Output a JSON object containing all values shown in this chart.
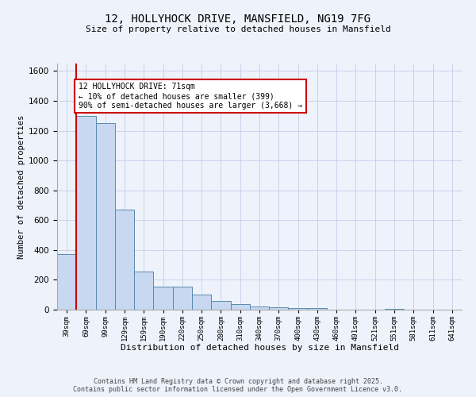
{
  "title_line1": "12, HOLLYHOCK DRIVE, MANSFIELD, NG19 7FG",
  "title_line2": "Size of property relative to detached houses in Mansfield",
  "xlabel": "Distribution of detached houses by size in Mansfield",
  "ylabel": "Number of detached properties",
  "categories": [
    "39sqm",
    "69sqm",
    "99sqm",
    "129sqm",
    "159sqm",
    "190sqm",
    "220sqm",
    "250sqm",
    "280sqm",
    "310sqm",
    "340sqm",
    "370sqm",
    "400sqm",
    "430sqm",
    "460sqm",
    "491sqm",
    "521sqm",
    "551sqm",
    "581sqm",
    "611sqm",
    "641sqm"
  ],
  "values": [
    375,
    1300,
    1250,
    670,
    258,
    155,
    155,
    103,
    60,
    37,
    22,
    15,
    8,
    8,
    2,
    1,
    0,
    5,
    0,
    0,
    0
  ],
  "bar_color": "#c8d8f0",
  "bar_edge_color": "#5a8ab0",
  "vline_color": "#cc0000",
  "annotation_text": "12 HOLLYHOCK DRIVE: 71sqm\n← 10% of detached houses are smaller (399)\n90% of semi-detached houses are larger (3,668) →",
  "annotation_box_color": "#ffffff",
  "annotation_box_edge": "#cc0000",
  "ylim": [
    0,
    1650
  ],
  "yticks": [
    0,
    200,
    400,
    600,
    800,
    1000,
    1200,
    1400,
    1600
  ],
  "footer_line1": "Contains HM Land Registry data © Crown copyright and database right 2025.",
  "footer_line2": "Contains public sector information licensed under the Open Government Licence v3.0.",
  "bg_color": "#eef2fb",
  "grid_color": "#c5cce8"
}
